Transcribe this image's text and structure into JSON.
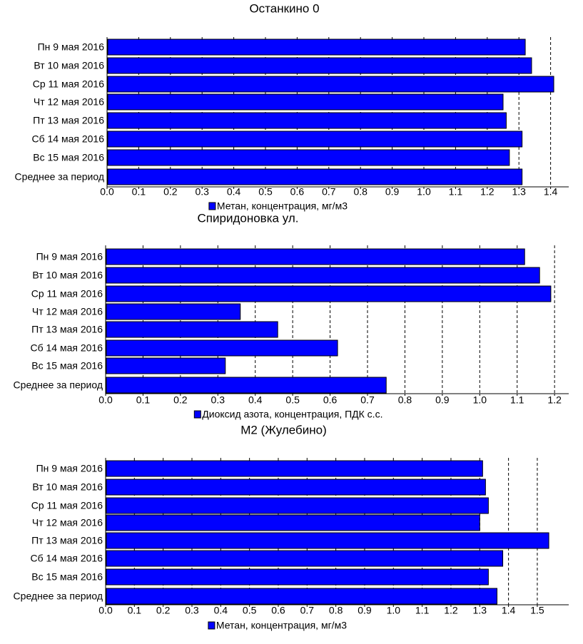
{
  "chart_data": [
    {
      "type": "bar",
      "orientation": "horizontal",
      "title": "Останкино 0",
      "categories": [
        "Пн 9 мая 2016",
        "Вт 10 мая 2016",
        "Ср 11 мая 2016",
        "Чт 12 мая 2016",
        "Пт 13 мая 2016",
        "Сб 14 мая 2016",
        "Вс 15 мая 2016",
        "Среднее за период"
      ],
      "series": [
        {
          "name": "Метан, концентрация, мг/м3",
          "values": [
            1.32,
            1.34,
            1.41,
            1.25,
            1.26,
            1.31,
            1.27,
            1.31
          ]
        }
      ],
      "xlim": [
        0,
        1.45
      ],
      "xticks": [
        "0.0",
        "0.1",
        "0.2",
        "0.3",
        "0.4",
        "0.5",
        "0.6",
        "0.7",
        "0.8",
        "0.9",
        "1.0",
        "1.1",
        "1.2",
        "1.3",
        "1.4"
      ],
      "grid": "vertical dashed",
      "legend": "bottom",
      "bar_color": "#0000ff"
    },
    {
      "type": "bar",
      "orientation": "horizontal",
      "title": "Спиридоновка ул.",
      "categories": [
        "Пн 9 мая 2016",
        "Вт 10 мая 2016",
        "Ср 11 мая 2016",
        "Чт 12 мая 2016",
        "Пт 13 мая 2016",
        "Сб 14 мая 2016",
        "Вс 15 мая 2016",
        "Среднее за период"
      ],
      "series": [
        {
          "name": "Диоксид азота, концентрация, ПДК с.с.",
          "values": [
            1.12,
            1.16,
            1.19,
            0.36,
            0.46,
            0.62,
            0.32,
            0.75
          ]
        }
      ],
      "xlim": [
        0,
        1.22
      ],
      "xticks": [
        "0.0",
        "0.1",
        "0.2",
        "0.3",
        "0.4",
        "0.5",
        "0.6",
        "0.7",
        "0.8",
        "0.9",
        "1.0",
        "1.1",
        "1.2"
      ],
      "grid": "vertical dashed",
      "legend": "bottom",
      "bar_color": "#0000ff"
    },
    {
      "type": "bar",
      "orientation": "horizontal",
      "title": "М2 (Жулебино)",
      "categories": [
        "Пн 9 мая 2016",
        "Вт 10 мая 2016",
        "Ср 11 мая 2016",
        "Чт 12 мая 2016",
        "Пт 13 мая 2016",
        "Сб 14 мая 2016",
        "Вс 15 мая 2016",
        "Среднее за период"
      ],
      "series": [
        {
          "name": "Метан, концентрация, мг/м3",
          "values": [
            1.31,
            1.32,
            1.33,
            1.3,
            1.54,
            1.38,
            1.33,
            1.36
          ]
        }
      ],
      "xlim": [
        0,
        1.58
      ],
      "xticks": [
        "0.0",
        "0.1",
        "0.2",
        "0.3",
        "0.4",
        "0.5",
        "0.6",
        "0.7",
        "0.8",
        "0.9",
        "1.0",
        "1.1",
        "1.2",
        "1.3",
        "1.4",
        "1.5"
      ],
      "grid": "vertical dashed",
      "legend": "bottom",
      "bar_color": "#0000ff"
    }
  ]
}
